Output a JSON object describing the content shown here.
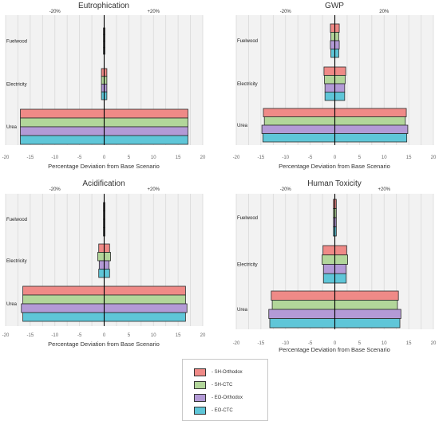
{
  "chart_data": [
    {
      "type": "bar",
      "orientation": "horizontal",
      "title": "Eutrophication",
      "categories": [
        "Fuelwood",
        "Electricity",
        "Urea"
      ],
      "series": [
        {
          "name": "SH-Orthodox",
          "low": [
            -0.15,
            -0.55,
            -17.0
          ],
          "high": [
            0.15,
            0.55,
            17.0
          ]
        },
        {
          "name": "SH-CTC",
          "low": [
            -0.15,
            -0.55,
            -17.0
          ],
          "high": [
            0.15,
            0.55,
            17.0
          ]
        },
        {
          "name": "EO-Orthodox",
          "low": [
            -0.15,
            -0.55,
            -17.0
          ],
          "high": [
            0.15,
            0.55,
            17.0
          ]
        },
        {
          "name": "EO-CTC",
          "low": [
            -0.15,
            -0.55,
            -17.0
          ],
          "high": [
            0.15,
            0.55,
            17.0
          ]
        }
      ],
      "xlim": [
        -20,
        20
      ],
      "xticks": [
        "-20",
        "-15",
        "-10",
        "-5",
        "0",
        "5",
        "10",
        "15",
        "20"
      ],
      "top_labels": [
        "-20%",
        "+20%"
      ],
      "xlabel": "Percentage Deviation from Base Scenario",
      "grid": true
    },
    {
      "type": "bar",
      "orientation": "horizontal",
      "title": "GWP",
      "categories": [
        "Fuelwood",
        "Electricity",
        "Urea"
      ],
      "series": [
        {
          "name": "SH-Orthodox",
          "low": [
            -0.9,
            -2.2,
            -14.5
          ],
          "high": [
            0.9,
            2.2,
            14.5
          ]
        },
        {
          "name": "SH-CTC",
          "low": [
            -0.8,
            -2.1,
            -14.3
          ],
          "high": [
            0.8,
            2.1,
            14.3
          ]
        },
        {
          "name": "EO-Orthodox",
          "low": [
            -0.9,
            -2.0,
            -14.8
          ],
          "high": [
            0.9,
            2.0,
            14.8
          ]
        },
        {
          "name": "EO-CTC",
          "low": [
            -0.8,
            -2.0,
            -14.6
          ],
          "high": [
            0.8,
            2.0,
            14.6
          ]
        }
      ],
      "xlim": [
        -20,
        20
      ],
      "xticks": [
        "-20",
        "-15",
        "-10",
        "-5",
        "0",
        "5",
        "10",
        "15",
        "20"
      ],
      "top_labels": [
        "-20%",
        "20%"
      ],
      "xlabel": "Percentage Deviation from Base Scenario",
      "grid": true
    },
    {
      "type": "bar",
      "orientation": "horizontal",
      "title": "Acidification",
      "categories": [
        "Fuelwood",
        "Electricity",
        "Urea"
      ],
      "series": [
        {
          "name": "SH-Orthodox",
          "low": [
            -0.15,
            -1.1,
            -16.5
          ],
          "high": [
            0.15,
            1.1,
            16.5
          ]
        },
        {
          "name": "SH-CTC",
          "low": [
            -0.15,
            -1.3,
            -16.5
          ],
          "high": [
            0.15,
            1.3,
            16.5
          ]
        },
        {
          "name": "EO-Orthodox",
          "low": [
            -0.15,
            -1.0,
            -16.8
          ],
          "high": [
            0.15,
            1.0,
            16.8
          ]
        },
        {
          "name": "EO-CTC",
          "low": [
            -0.15,
            -1.1,
            -16.5
          ],
          "high": [
            0.15,
            1.1,
            16.5
          ]
        }
      ],
      "xlim": [
        -20,
        20
      ],
      "xticks": [
        "-20",
        "-15",
        "-10",
        "-5",
        "0",
        "5",
        "10",
        "15",
        "20"
      ],
      "top_labels": [
        "-20%",
        "+20%"
      ],
      "xlabel": "Percentage Deviation from Base Scenario",
      "grid": true
    },
    {
      "type": "bar",
      "orientation": "horizontal",
      "title": "Human Toxicity",
      "categories": [
        "Fuelwood",
        "Electricity",
        "Urea"
      ],
      "series": [
        {
          "name": "SH-Orthodox",
          "low": [
            -0.3,
            -2.4,
            -12.9
          ],
          "high": [
            0.3,
            2.4,
            12.9
          ]
        },
        {
          "name": "SH-CTC",
          "low": [
            -0.3,
            -2.6,
            -12.7
          ],
          "high": [
            0.3,
            2.6,
            12.7
          ]
        },
        {
          "name": "EO-Orthodox",
          "low": [
            -0.3,
            -2.3,
            -13.4
          ],
          "high": [
            0.3,
            2.3,
            13.4
          ]
        },
        {
          "name": "EO-CTC",
          "low": [
            -0.3,
            -2.3,
            -13.2
          ],
          "high": [
            0.3,
            2.3,
            13.2
          ]
        }
      ],
      "xlim": [
        -20,
        20
      ],
      "xticks": [
        "-20",
        "-15",
        "-10",
        "-5",
        "0",
        "5",
        "10",
        "15",
        "20"
      ],
      "top_labels": [
        "-20%",
        "+20%"
      ],
      "xlabel": "Percentage Deviation from Base Scenario",
      "grid": true
    }
  ],
  "legend": {
    "entries": [
      {
        "label": "- SH-Orthodox",
        "color": "#ef8a87"
      },
      {
        "label": "- SH-CTC",
        "color": "#b2d69a"
      },
      {
        "label": "- EO-Orthodox",
        "color": "#b39ad6"
      },
      {
        "label": "- EO-CTC",
        "color": "#5fc6d8"
      }
    ]
  },
  "colors": {
    "grid": "#d9d9d9",
    "plot_bg": "#f2f2f2",
    "axis": "#000000",
    "text": "#333333",
    "tick_text": "#666666"
  }
}
